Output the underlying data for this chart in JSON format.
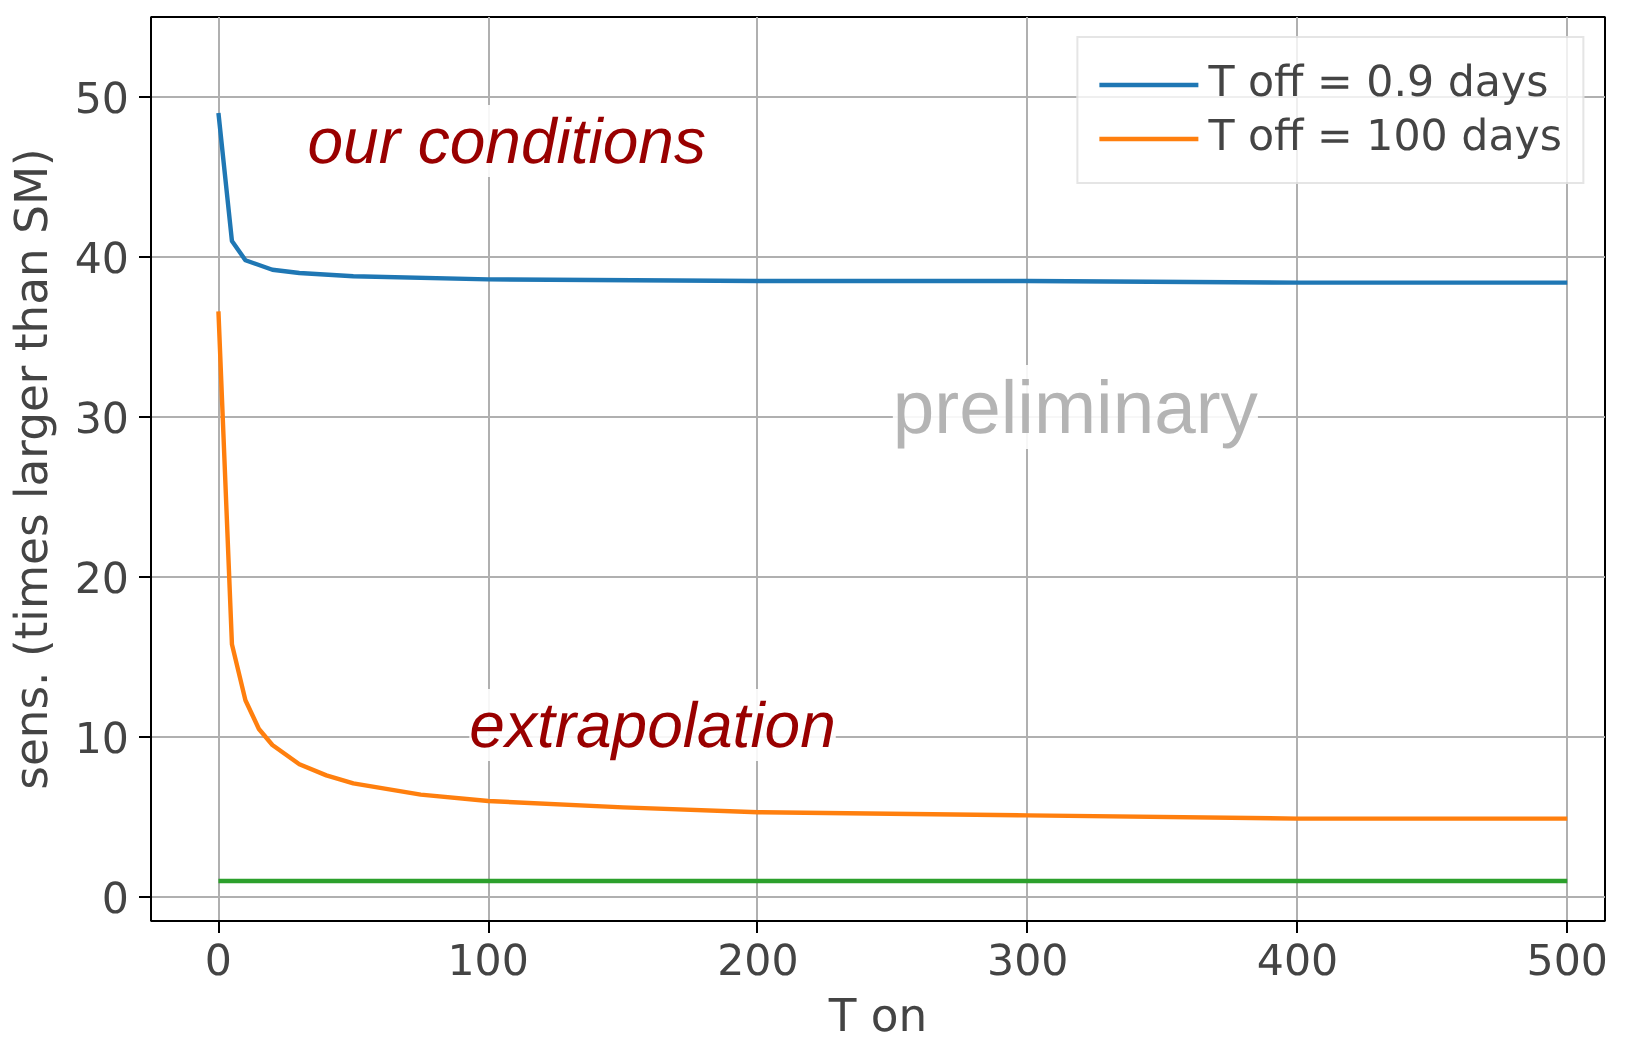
{
  "chart_data": {
    "type": "line",
    "xlabel": "T on",
    "ylabel": "sens. (times larger than SM)",
    "xlim": [
      -25,
      514
    ],
    "ylim": [
      -1.5,
      55
    ],
    "xticks": [
      0,
      100,
      200,
      300,
      400,
      500
    ],
    "yticks": [
      0,
      10,
      20,
      30,
      40,
      50
    ],
    "grid": true,
    "legend": "top right",
    "annotations": [
      "our conditions",
      "extrapolation",
      "preliminary"
    ],
    "series": [
      {
        "name": "T off = 0.9 days",
        "color": "#1f77b4",
        "x": [
          0,
          5,
          10,
          20,
          30,
          50,
          100,
          200,
          300,
          400,
          500
        ],
        "values": [
          49,
          41,
          39.8,
          39.2,
          39,
          38.8,
          38.6,
          38.5,
          38.5,
          38.4,
          38.4
        ]
      },
      {
        "name": "T off = 100 days",
        "color": "#ff7f0e",
        "x": [
          0,
          5,
          10,
          15,
          20,
          30,
          40,
          50,
          75,
          100,
          150,
          200,
          300,
          400,
          500
        ],
        "values": [
          36.6,
          15.8,
          12.3,
          10.5,
          9.5,
          8.3,
          7.6,
          7.1,
          6.4,
          6,
          5.6,
          5.3,
          5.1,
          4.9,
          4.9
        ]
      },
      {
        "color": "#2ca02c",
        "x": [
          0,
          500
        ],
        "values": [
          1,
          1
        ]
      }
    ]
  }
}
